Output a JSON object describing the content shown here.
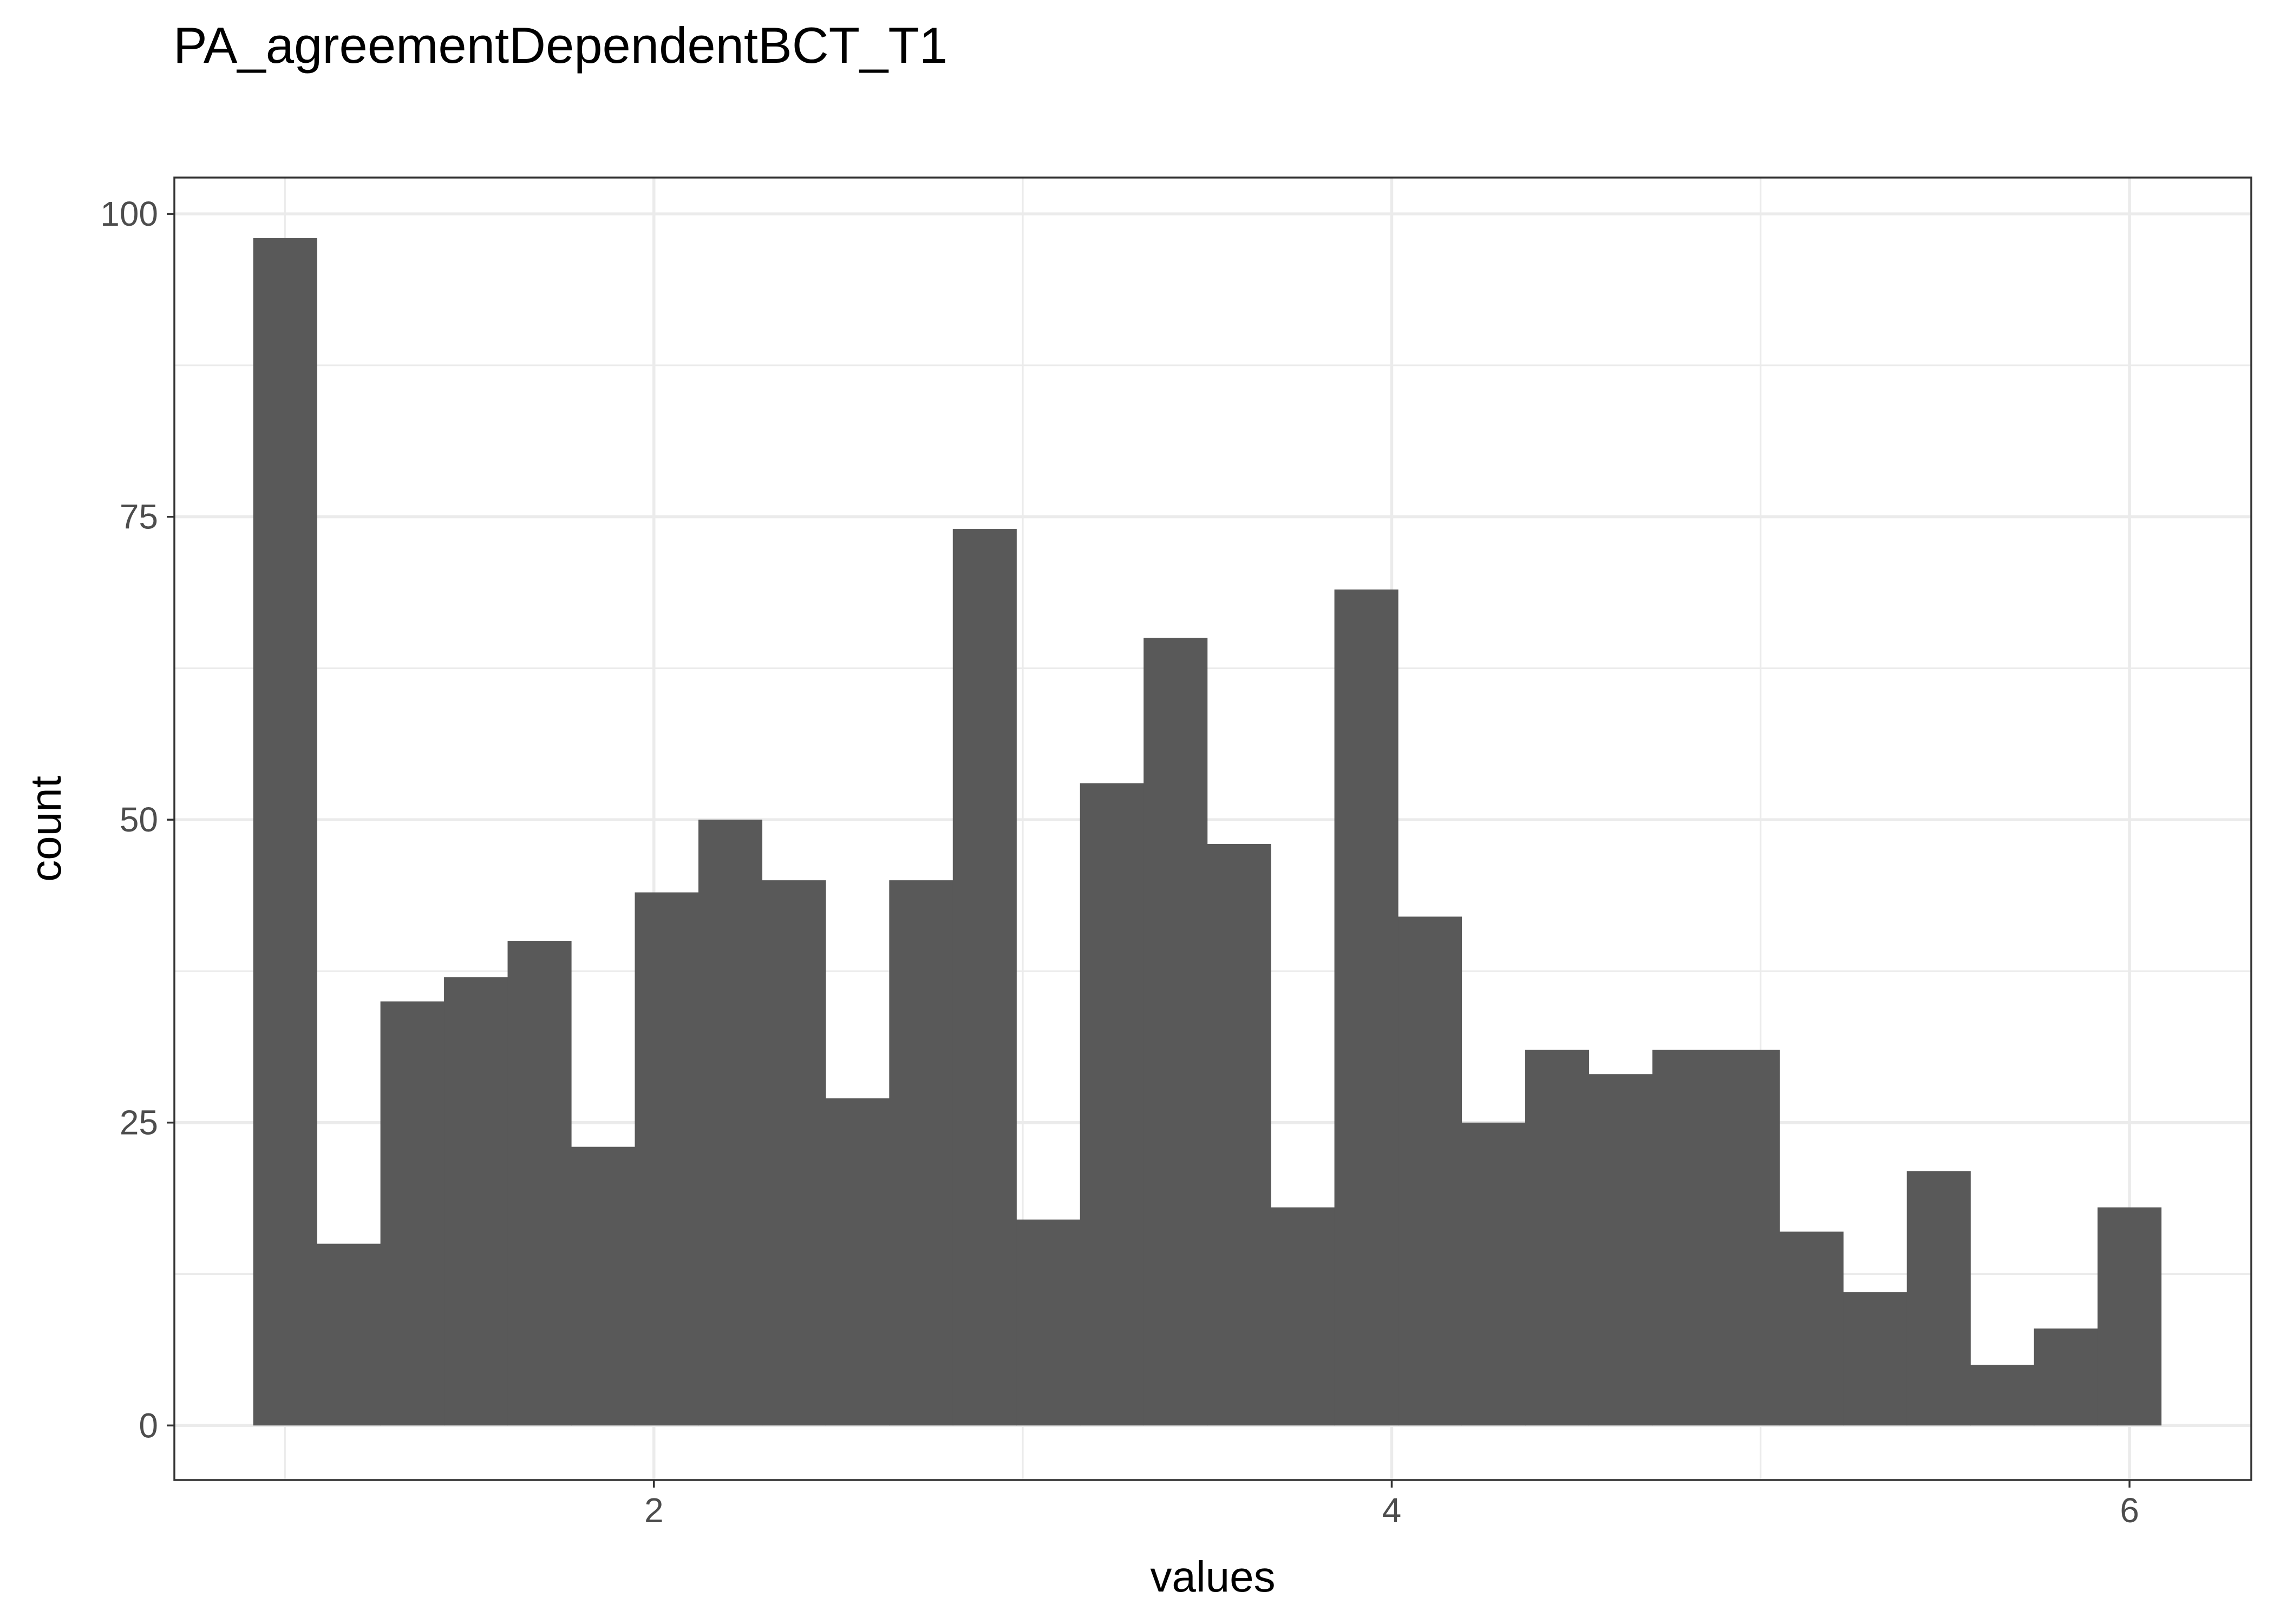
{
  "chart_data": {
    "type": "bar",
    "subtype": "histogram",
    "title": "PA_agreementDependentBCT_T1",
    "xlabel": "values",
    "ylabel": "count",
    "xlim": [
      0.7,
      6.33
    ],
    "ylim": [
      -4.5,
      103
    ],
    "x_ticks": [
      2,
      4,
      6
    ],
    "y_ticks": [
      0,
      25,
      50,
      75,
      100
    ],
    "bin_width": 0.1724,
    "bins_start": 0.9138,
    "values": [
      98,
      15,
      35,
      37,
      40,
      23,
      44,
      50,
      45,
      27,
      45,
      74,
      17,
      53,
      65,
      48,
      18,
      69,
      42,
      25,
      31,
      29,
      31,
      31,
      16,
      11,
      21,
      5,
      8,
      18
    ],
    "bar_color": "#595959",
    "grid": true,
    "theme": "bw"
  }
}
